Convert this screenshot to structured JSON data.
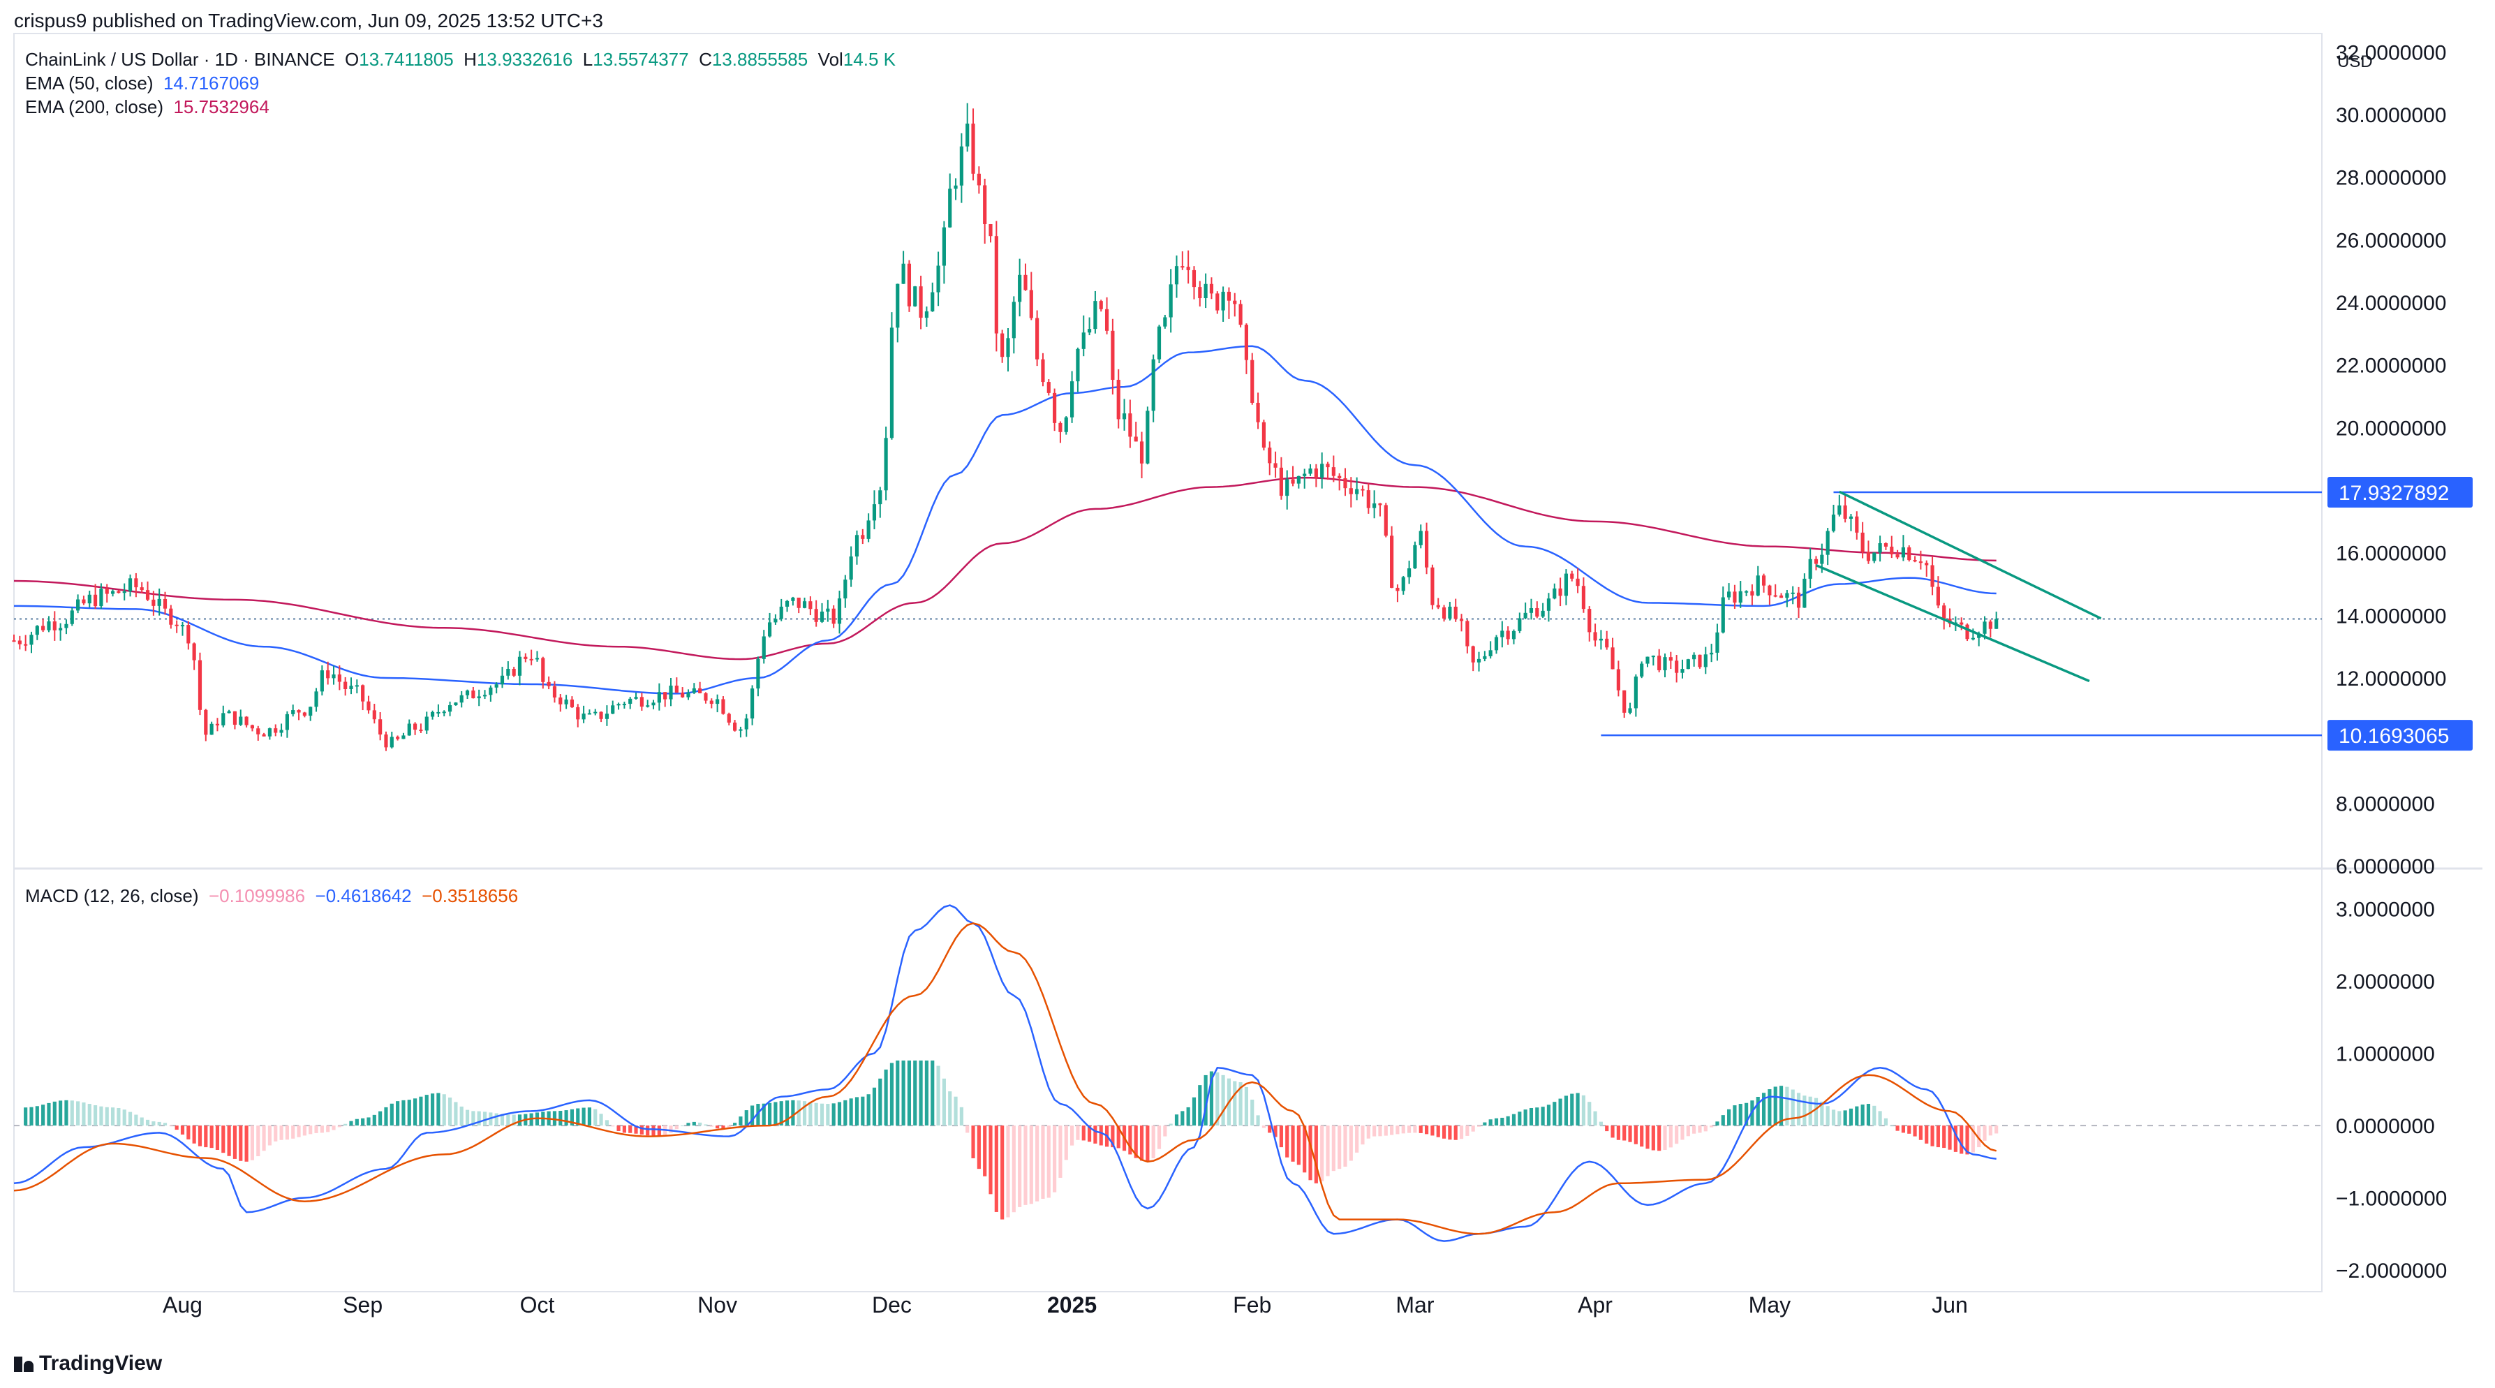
{
  "header": {
    "published": "crispus9 published on TradingView.com, Jun 09, 2025 13:52 UTC+3",
    "symbol": "ChainLink / US Dollar · 1D · BINANCE",
    "o_label": "O",
    "o_value": "13.7411805",
    "h_label": "H",
    "h_value": "13.9332616",
    "l_label": "L",
    "l_value": "13.5574377",
    "c_label": "C",
    "c_value": "13.8855585",
    "vol_label": "Vol",
    "vol_value": "14.5 K",
    "ema50_label": "EMA (50, close)",
    "ema50_value": "14.7167069",
    "ema200_label": "EMA (200, close)",
    "ema200_value": "15.7532964",
    "macd_label": "MACD (12, 26, close)",
    "macd_hist_value": "−0.1099986",
    "macd_line_value": "−0.4618642",
    "macd_signal_value": "−0.3518656"
  },
  "footer": {
    "brand": "TradingView"
  },
  "colors": {
    "up": "#089981",
    "down": "#f23645",
    "ema50": "#2962ff",
    "ema200": "#c2185b",
    "macd_line": "#2962ff",
    "signal": "#e65100",
    "hist_pos_strong": "#26a69a",
    "hist_pos_weak": "#b2dfdb",
    "hist_neg_strong": "#ff5252",
    "hist_neg_weak": "#ffcdd2",
    "channel": "#089981",
    "level": "#2962ff"
  },
  "chart_data": {
    "type": "candlestick",
    "axis": {
      "currency": "USD",
      "ylim": [
        6,
        32.5
      ],
      "yticks": [
        "32.0000000",
        "30.0000000",
        "28.0000000",
        "26.0000000",
        "24.0000000",
        "22.0000000",
        "20.0000000",
        "16.0000000",
        "14.0000000",
        "12.0000000",
        "8.0000000",
        "6.0000000"
      ],
      "ytick_values": [
        32,
        30,
        28,
        26,
        24,
        22,
        20,
        16,
        14,
        12,
        8,
        6
      ],
      "xlabels": [
        {
          "label": "Aug",
          "date": "2024-08-01"
        },
        {
          "label": "Sep",
          "date": "2024-09-01"
        },
        {
          "label": "Oct",
          "date": "2024-10-01"
        },
        {
          "label": "Nov",
          "date": "2024-11-01"
        },
        {
          "label": "Dec",
          "date": "2024-12-01"
        },
        {
          "label": "2025",
          "date": "2025-01-01",
          "bold": true
        },
        {
          "label": "Feb",
          "date": "2025-02-01"
        },
        {
          "label": "Mar",
          "date": "2025-03-01"
        },
        {
          "label": "Apr",
          "date": "2025-04-01"
        },
        {
          "label": "May",
          "date": "2025-05-01"
        },
        {
          "label": "Jun",
          "date": "2025-06-01"
        }
      ],
      "x_range": [
        "2024-07-03",
        "2025-08-04"
      ],
      "current_price": 13.8855585
    },
    "levels": [
      {
        "label": "17.9327892",
        "value": 17.9327892,
        "from": "2025-05-12",
        "to": "2025-08-04"
      },
      {
        "label": "10.1693065",
        "value": 10.1693065,
        "from": "2025-04-02",
        "to": "2025-08-04"
      }
    ],
    "channel": [
      {
        "from_date": "2025-05-13",
        "from_value": 17.95,
        "to_date": "2025-06-27",
        "to_value": 13.9
      },
      {
        "from_date": "2025-05-09",
        "from_value": 15.6,
        "to_date": "2025-06-25",
        "to_value": 11.9
      }
    ],
    "price_anchors": [
      [
        "2024-07-03",
        13.2
      ],
      [
        "2024-07-10",
        13.8
      ],
      [
        "2024-07-18",
        14.6
      ],
      [
        "2024-07-24",
        14.9
      ],
      [
        "2024-07-30",
        14.0
      ],
      [
        "2024-08-02",
        13.4
      ],
      [
        "2024-08-05",
        10.2
      ],
      [
        "2024-08-08",
        10.8
      ],
      [
        "2024-08-15",
        10.3
      ],
      [
        "2024-08-22",
        11.0
      ],
      [
        "2024-08-26",
        12.2
      ],
      [
        "2024-08-30",
        11.6
      ],
      [
        "2024-09-06",
        9.9
      ],
      [
        "2024-09-10",
        10.4
      ],
      [
        "2024-09-17",
        11.3
      ],
      [
        "2024-09-24",
        11.8
      ],
      [
        "2024-09-30",
        12.8
      ],
      [
        "2024-10-03",
        11.5
      ],
      [
        "2024-10-10",
        10.7
      ],
      [
        "2024-10-17",
        11.3
      ],
      [
        "2024-10-24",
        11.5
      ],
      [
        "2024-10-31",
        11.4
      ],
      [
        "2024-11-05",
        10.4
      ],
      [
        "2024-11-10",
        13.8
      ],
      [
        "2024-11-14",
        14.4
      ],
      [
        "2024-11-21",
        13.9
      ],
      [
        "2024-11-25",
        16.5
      ],
      [
        "2024-11-29",
        18.2
      ],
      [
        "2024-12-02",
        25.0
      ],
      [
        "2024-12-06",
        23.8
      ],
      [
        "2024-12-09",
        25.1
      ],
      [
        "2024-12-12",
        28.2
      ],
      [
        "2024-12-14",
        29.1
      ],
      [
        "2024-12-17",
        26.8
      ],
      [
        "2024-12-20",
        22.0
      ],
      [
        "2024-12-23",
        24.6
      ],
      [
        "2024-12-27",
        21.8
      ],
      [
        "2024-12-30",
        20.0
      ],
      [
        "2025-01-02",
        22.5
      ],
      [
        "2025-01-06",
        23.8
      ],
      [
        "2025-01-09",
        20.4
      ],
      [
        "2025-01-13",
        19.2
      ],
      [
        "2025-01-16",
        22.8
      ],
      [
        "2025-01-20",
        25.6
      ],
      [
        "2025-01-25",
        24.0
      ],
      [
        "2025-01-28",
        24.6
      ],
      [
        "2025-02-01",
        21.2
      ],
      [
        "2025-02-03",
        19.0
      ],
      [
        "2025-02-07",
        18.0
      ],
      [
        "2025-02-12",
        18.7
      ],
      [
        "2025-02-18",
        18.2
      ],
      [
        "2025-02-22",
        17.6
      ],
      [
        "2025-02-26",
        14.8
      ],
      [
        "2025-03-02",
        16.5
      ],
      [
        "2025-03-04",
        14.5
      ],
      [
        "2025-03-08",
        13.9
      ],
      [
        "2025-03-11",
        12.4
      ],
      [
        "2025-03-16",
        13.5
      ],
      [
        "2025-03-23",
        14.3
      ],
      [
        "2025-03-28",
        15.2
      ],
      [
        "2025-04-02",
        13.0
      ],
      [
        "2025-04-07",
        10.9
      ],
      [
        "2025-04-09",
        12.7
      ],
      [
        "2025-04-15",
        12.3
      ],
      [
        "2025-04-20",
        12.6
      ],
      [
        "2025-04-24",
        14.6
      ],
      [
        "2025-04-29",
        15.0
      ],
      [
        "2025-05-06",
        14.5
      ],
      [
        "2025-05-09",
        15.9
      ],
      [
        "2025-05-13",
        17.3
      ],
      [
        "2025-05-18",
        16.0
      ],
      [
        "2025-05-23",
        16.2
      ],
      [
        "2025-05-27",
        15.9
      ],
      [
        "2025-05-31",
        13.8
      ],
      [
        "2025-06-04",
        13.5
      ],
      [
        "2025-06-07",
        13.7
      ],
      [
        "2025-06-09",
        13.89
      ]
    ],
    "ema50_anchors": [
      [
        "2024-07-03",
        14.3
      ],
      [
        "2024-07-24",
        14.2
      ],
      [
        "2024-08-15",
        13.0
      ],
      [
        "2024-09-05",
        12.0
      ],
      [
        "2024-09-30",
        11.8
      ],
      [
        "2024-10-25",
        11.5
      ],
      [
        "2024-11-08",
        12.0
      ],
      [
        "2024-11-20",
        13.2
      ],
      [
        "2024-12-01",
        15.0
      ],
      [
        "2024-12-12",
        18.5
      ],
      [
        "2024-12-20",
        20.4
      ],
      [
        "2025-01-01",
        21.1
      ],
      [
        "2025-01-10",
        21.3
      ],
      [
        "2025-01-21",
        22.4
      ],
      [
        "2025-02-01",
        22.6
      ],
      [
        "2025-02-10",
        21.5
      ],
      [
        "2025-03-01",
        18.8
      ],
      [
        "2025-03-20",
        16.2
      ],
      [
        "2025-04-10",
        14.4
      ],
      [
        "2025-04-30",
        14.3
      ],
      [
        "2025-05-13",
        15.0
      ],
      [
        "2025-05-25",
        15.2
      ],
      [
        "2025-06-09",
        14.7
      ]
    ],
    "ema200_anchors": [
      [
        "2024-07-03",
        15.1
      ],
      [
        "2024-08-10",
        14.5
      ],
      [
        "2024-09-15",
        13.6
      ],
      [
        "2024-10-15",
        13.0
      ],
      [
        "2024-11-05",
        12.6
      ],
      [
        "2024-11-20",
        13.1
      ],
      [
        "2024-12-05",
        14.4
      ],
      [
        "2024-12-20",
        16.3
      ],
      [
        "2025-01-05",
        17.4
      ],
      [
        "2025-01-25",
        18.1
      ],
      [
        "2025-02-10",
        18.4
      ],
      [
        "2025-03-01",
        18.1
      ],
      [
        "2025-04-01",
        17.0
      ],
      [
        "2025-05-01",
        16.2
      ],
      [
        "2025-05-20",
        16.0
      ],
      [
        "2025-06-09",
        15.75
      ]
    ],
    "macd": {
      "ylim": [
        -2.3,
        3.5
      ],
      "yticks": [
        "3.0000000",
        "2.0000000",
        "1.0000000",
        "0.0000000",
        "−1.0000000",
        "−2.0000000"
      ],
      "ytick_values": [
        3,
        2,
        1,
        0,
        -1,
        -2
      ],
      "macd_anchors": [
        [
          "2024-07-03",
          -0.8
        ],
        [
          "2024-07-15",
          -0.3
        ],
        [
          "2024-07-28",
          -0.1
        ],
        [
          "2024-08-08",
          -0.6
        ],
        [
          "2024-08-12",
          -1.2
        ],
        [
          "2024-08-22",
          -1.0
        ],
        [
          "2024-09-05",
          -0.6
        ],
        [
          "2024-09-12",
          -0.1
        ],
        [
          "2024-09-30",
          0.2
        ],
        [
          "2024-10-10",
          0.35
        ],
        [
          "2024-10-20",
          -0.05
        ],
        [
          "2024-11-03",
          -0.15
        ],
        [
          "2024-11-12",
          0.4
        ],
        [
          "2024-11-20",
          0.5
        ],
        [
          "2024-11-28",
          1.0
        ],
        [
          "2024-12-05",
          2.7
        ],
        [
          "2024-12-11",
          3.05
        ],
        [
          "2024-12-15",
          2.8
        ],
        [
          "2024-12-22",
          1.8
        ],
        [
          "2024-12-30",
          0.3
        ],
        [
          "2025-01-06",
          -0.1
        ],
        [
          "2025-01-14",
          -1.15
        ],
        [
          "2025-01-22",
          -0.3
        ],
        [
          "2025-01-26",
          0.8
        ],
        [
          "2025-02-01",
          0.7
        ],
        [
          "2025-02-08",
          -0.8
        ],
        [
          "2025-02-15",
          -1.5
        ],
        [
          "2025-02-26",
          -1.3
        ],
        [
          "2025-03-06",
          -1.6
        ],
        [
          "2025-03-12",
          -1.5
        ],
        [
          "2025-03-20",
          -1.4
        ],
        [
          "2025-03-31",
          -0.5
        ],
        [
          "2025-04-10",
          -1.1
        ],
        [
          "2025-04-20",
          -0.8
        ],
        [
          "2025-05-01",
          0.4
        ],
        [
          "2025-05-10",
          0.3
        ],
        [
          "2025-05-20",
          0.8
        ],
        [
          "2025-05-28",
          0.5
        ],
        [
          "2025-06-05",
          -0.4
        ],
        [
          "2025-06-09",
          -0.46
        ]
      ],
      "signal_anchors": [
        [
          "2024-07-03",
          -0.9
        ],
        [
          "2024-07-20",
          -0.25
        ],
        [
          "2024-08-05",
          -0.45
        ],
        [
          "2024-08-22",
          -1.05
        ],
        [
          "2024-09-15",
          -0.4
        ],
        [
          "2024-10-01",
          0.1
        ],
        [
          "2024-10-20",
          -0.15
        ],
        [
          "2024-11-10",
          0.0
        ],
        [
          "2024-11-20",
          0.4
        ],
        [
          "2024-12-05",
          1.8
        ],
        [
          "2024-12-15",
          2.8
        ],
        [
          "2024-12-22",
          2.4
        ],
        [
          "2025-01-05",
          0.3
        ],
        [
          "2025-01-14",
          -0.5
        ],
        [
          "2025-01-22",
          -0.2
        ],
        [
          "2025-02-01",
          0.6
        ],
        [
          "2025-02-08",
          0.2
        ],
        [
          "2025-02-16",
          -1.3
        ],
        [
          "2025-02-26",
          -1.3
        ],
        [
          "2025-03-12",
          -1.5
        ],
        [
          "2025-03-25",
          -1.2
        ],
        [
          "2025-04-05",
          -0.8
        ],
        [
          "2025-04-20",
          -0.75
        ],
        [
          "2025-05-05",
          0.1
        ],
        [
          "2025-05-18",
          0.7
        ],
        [
          "2025-06-01",
          0.2
        ],
        [
          "2025-06-09",
          -0.35
        ]
      ],
      "histogram": [
        [
          "2024-07-05",
          0.25
        ],
        [
          "2024-07-12",
          0.35
        ],
        [
          "2024-07-20",
          0.25
        ],
        [
          "2024-07-28",
          0.05
        ],
        [
          "2024-08-05",
          -0.3
        ],
        [
          "2024-08-12",
          -0.5
        ],
        [
          "2024-08-18",
          -0.2
        ],
        [
          "2024-08-25",
          -0.1
        ],
        [
          "2024-09-01",
          0.1
        ],
        [
          "2024-09-08",
          0.35
        ],
        [
          "2024-09-14",
          0.45
        ],
        [
          "2024-09-20",
          0.2
        ],
        [
          "2024-09-27",
          0.15
        ],
        [
          "2024-10-04",
          0.2
        ],
        [
          "2024-10-10",
          0.25
        ],
        [
          "2024-10-16",
          -0.1
        ],
        [
          "2024-10-22",
          -0.15
        ],
        [
          "2024-10-28",
          0.05
        ],
        [
          "2024-11-02",
          -0.05
        ],
        [
          "2024-11-08",
          0.3
        ],
        [
          "2024-11-14",
          0.35
        ],
        [
          "2024-11-20",
          0.3
        ],
        [
          "2024-11-26",
          0.4
        ],
        [
          "2024-12-02",
          0.9
        ],
        [
          "2024-12-08",
          0.9
        ],
        [
          "2024-12-12",
          0.4
        ],
        [
          "2024-12-16",
          -0.6
        ],
        [
          "2024-12-20",
          -1.3
        ],
        [
          "2024-12-24",
          -1.1
        ],
        [
          "2024-12-28",
          -1.0
        ],
        [
          "2025-01-02",
          -0.2
        ],
        [
          "2025-01-08",
          -0.3
        ],
        [
          "2025-01-14",
          -0.5
        ],
        [
          "2025-01-20",
          0.2
        ],
        [
          "2025-01-25",
          0.75
        ],
        [
          "2025-01-30",
          0.6
        ],
        [
          "2025-02-04",
          -0.1
        ],
        [
          "2025-02-08",
          -0.5
        ],
        [
          "2025-02-12",
          -0.8
        ],
        [
          "2025-02-16",
          -0.6
        ],
        [
          "2025-02-22",
          -0.15
        ],
        [
          "2025-03-01",
          -0.1
        ],
        [
          "2025-03-08",
          -0.2
        ],
        [
          "2025-03-15",
          0.1
        ],
        [
          "2025-03-22",
          0.25
        ],
        [
          "2025-03-29",
          0.45
        ],
        [
          "2025-04-05",
          -0.2
        ],
        [
          "2025-04-12",
          -0.35
        ],
        [
          "2025-04-19",
          -0.1
        ],
        [
          "2025-04-26",
          0.3
        ],
        [
          "2025-05-03",
          0.55
        ],
        [
          "2025-05-08",
          0.4
        ],
        [
          "2025-05-13",
          0.2
        ],
        [
          "2025-05-18",
          0.3
        ],
        [
          "2025-05-24",
          -0.1
        ],
        [
          "2025-05-30",
          -0.3
        ],
        [
          "2025-06-04",
          -0.4
        ],
        [
          "2025-06-09",
          -0.11
        ]
      ]
    }
  }
}
